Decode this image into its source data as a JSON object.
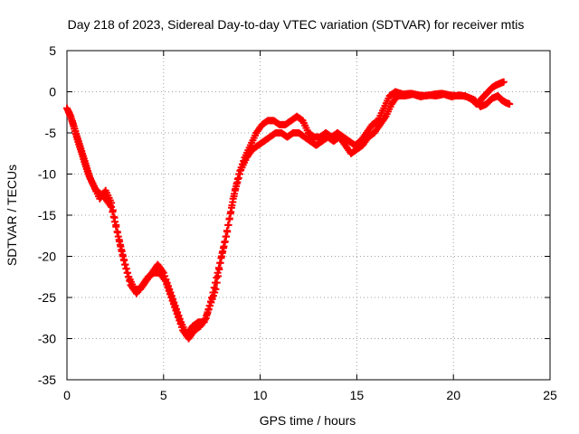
{
  "chart_data": {
    "type": "scatter",
    "title": "Day 218 of 2023, Sidereal Day-to-day VTEC variation (SDTVAR) for receiver mtis",
    "xlabel": "GPS time / hours",
    "ylabel": "SDTVAR / TECUs",
    "xlim": [
      0,
      25
    ],
    "ylim": [
      -35,
      5
    ],
    "x_ticks": [
      0,
      5,
      10,
      15,
      20,
      25
    ],
    "y_ticks": [
      -35,
      -30,
      -25,
      -20,
      -15,
      -10,
      -5,
      0,
      5
    ],
    "x_tick_labels": [
      "0",
      "5",
      "10",
      "15",
      "20",
      "25"
    ],
    "y_tick_labels": [
      "-35",
      "-30",
      "-25",
      "-20",
      "-15",
      "-10",
      "-5",
      "0",
      "5"
    ],
    "grid": true,
    "marker": "+",
    "color": "#ff0000",
    "series": [
      {
        "values_xy": [
          [
            0.0,
            -2.0
          ],
          [
            0.2,
            -3.0
          ],
          [
            0.4,
            -4.5
          ],
          [
            0.6,
            -6.0
          ],
          [
            0.8,
            -7.5
          ],
          [
            1.0,
            -9.0
          ],
          [
            1.2,
            -10.5
          ],
          [
            1.5,
            -12.0
          ],
          [
            1.8,
            -12.5
          ],
          [
            2.0,
            -13.0
          ],
          [
            2.3,
            -14.0
          ],
          [
            2.6,
            -17.0
          ],
          [
            2.9,
            -20.0
          ],
          [
            3.2,
            -22.5
          ],
          [
            3.5,
            -24.0
          ],
          [
            3.8,
            -24.0
          ],
          [
            4.1,
            -23.0
          ],
          [
            4.4,
            -22.0
          ],
          [
            4.7,
            -21.0
          ],
          [
            5.0,
            -22.0
          ],
          [
            5.3,
            -24.0
          ],
          [
            5.6,
            -26.0
          ],
          [
            5.9,
            -28.0
          ],
          [
            6.2,
            -29.5
          ],
          [
            6.5,
            -28.5
          ],
          [
            6.8,
            -28.0
          ],
          [
            7.1,
            -28.0
          ],
          [
            7.4,
            -26.0
          ],
          [
            7.7,
            -24.0
          ],
          [
            8.0,
            -20.0
          ],
          [
            8.3,
            -17.0
          ],
          [
            8.6,
            -13.0
          ],
          [
            8.9,
            -10.0
          ],
          [
            9.2,
            -8.0
          ],
          [
            9.5,
            -6.5
          ],
          [
            9.8,
            -5.0
          ],
          [
            10.1,
            -4.0
          ],
          [
            10.4,
            -3.5
          ],
          [
            10.7,
            -3.5
          ],
          [
            11.0,
            -4.0
          ],
          [
            11.3,
            -4.0
          ],
          [
            11.6,
            -3.5
          ],
          [
            11.9,
            -3.0
          ],
          [
            12.2,
            -3.5
          ],
          [
            12.5,
            -5.0
          ],
          [
            12.8,
            -5.5
          ],
          [
            13.1,
            -5.5
          ],
          [
            13.4,
            -5.0
          ],
          [
            13.7,
            -5.5
          ],
          [
            14.0,
            -5.0
          ],
          [
            14.3,
            -5.5
          ],
          [
            14.6,
            -6.0
          ],
          [
            14.9,
            -6.5
          ],
          [
            15.2,
            -6.0
          ],
          [
            15.5,
            -5.0
          ],
          [
            15.8,
            -4.0
          ],
          [
            16.1,
            -3.5
          ],
          [
            16.4,
            -2.0
          ],
          [
            16.7,
            -0.5
          ],
          [
            17.0,
            0.0
          ],
          [
            17.4,
            -0.3
          ],
          [
            17.8,
            -0.2
          ],
          [
            18.2,
            -0.4
          ],
          [
            18.6,
            -0.5
          ],
          [
            19.0,
            -0.3
          ],
          [
            19.4,
            -0.2
          ],
          [
            19.8,
            -0.4
          ],
          [
            20.2,
            -0.5
          ],
          [
            20.6,
            -0.5
          ],
          [
            21.0,
            -1.0
          ],
          [
            21.2,
            -1.5
          ],
          [
            21.4,
            -1.0
          ],
          [
            21.6,
            -0.5
          ],
          [
            21.8,
            0.0
          ],
          [
            22.0,
            0.5
          ],
          [
            22.2,
            0.8
          ],
          [
            22.4,
            1.0
          ],
          [
            22.6,
            1.2
          ]
        ]
      },
      {
        "values_xy": [
          [
            0.1,
            -2.5
          ],
          [
            0.3,
            -3.8
          ],
          [
            0.5,
            -5.5
          ],
          [
            0.7,
            -7.0
          ],
          [
            0.9,
            -8.5
          ],
          [
            1.1,
            -10.0
          ],
          [
            1.4,
            -11.5
          ],
          [
            1.7,
            -13.0
          ],
          [
            2.0,
            -12.0
          ],
          [
            2.3,
            -13.5
          ],
          [
            2.7,
            -18.0
          ],
          [
            3.0,
            -21.0
          ],
          [
            3.3,
            -23.5
          ],
          [
            3.6,
            -24.5
          ],
          [
            3.9,
            -23.5
          ],
          [
            4.2,
            -22.5
          ],
          [
            4.5,
            -22.0
          ],
          [
            4.8,
            -22.0
          ],
          [
            5.1,
            -23.0
          ],
          [
            5.4,
            -25.0
          ],
          [
            5.7,
            -27.0
          ],
          [
            6.0,
            -29.0
          ],
          [
            6.3,
            -30.0
          ],
          [
            6.6,
            -29.0
          ],
          [
            6.9,
            -28.5
          ],
          [
            7.2,
            -27.5
          ],
          [
            7.5,
            -25.0
          ],
          [
            7.8,
            -22.0
          ],
          [
            8.1,
            -19.0
          ],
          [
            8.4,
            -15.5
          ],
          [
            8.7,
            -12.0
          ],
          [
            9.0,
            -9.5
          ],
          [
            9.3,
            -8.0
          ],
          [
            9.6,
            -7.0
          ],
          [
            9.9,
            -6.5
          ],
          [
            10.2,
            -6.0
          ],
          [
            10.5,
            -5.5
          ],
          [
            10.8,
            -5.0
          ],
          [
            11.1,
            -5.0
          ],
          [
            11.4,
            -5.5
          ],
          [
            11.7,
            -5.0
          ],
          [
            12.0,
            -5.0
          ],
          [
            12.3,
            -5.5
          ],
          [
            12.6,
            -6.0
          ],
          [
            12.9,
            -6.5
          ],
          [
            13.2,
            -6.0
          ],
          [
            13.5,
            -5.5
          ],
          [
            13.8,
            -6.0
          ],
          [
            14.1,
            -5.5
          ],
          [
            14.4,
            -6.5
          ],
          [
            14.7,
            -7.5
          ],
          [
            15.0,
            -7.0
          ],
          [
            15.3,
            -6.5
          ],
          [
            15.6,
            -5.5
          ],
          [
            15.9,
            -5.0
          ],
          [
            16.2,
            -4.0
          ],
          [
            16.5,
            -3.0
          ],
          [
            16.8,
            -1.5
          ],
          [
            17.1,
            -0.5
          ],
          [
            17.5,
            -0.5
          ],
          [
            17.9,
            -0.3
          ],
          [
            18.3,
            -0.6
          ],
          [
            18.7,
            -0.4
          ],
          [
            19.1,
            -0.5
          ],
          [
            19.5,
            -0.3
          ],
          [
            19.9,
            -0.6
          ],
          [
            20.3,
            -0.4
          ],
          [
            20.7,
            -0.6
          ],
          [
            21.1,
            -1.0
          ],
          [
            21.4,
            -1.8
          ],
          [
            21.7,
            -1.5
          ],
          [
            22.0,
            -0.8
          ],
          [
            22.3,
            -0.5
          ],
          [
            22.5,
            -1.0
          ],
          [
            22.7,
            -1.3
          ],
          [
            22.9,
            -1.5
          ]
        ]
      }
    ]
  }
}
